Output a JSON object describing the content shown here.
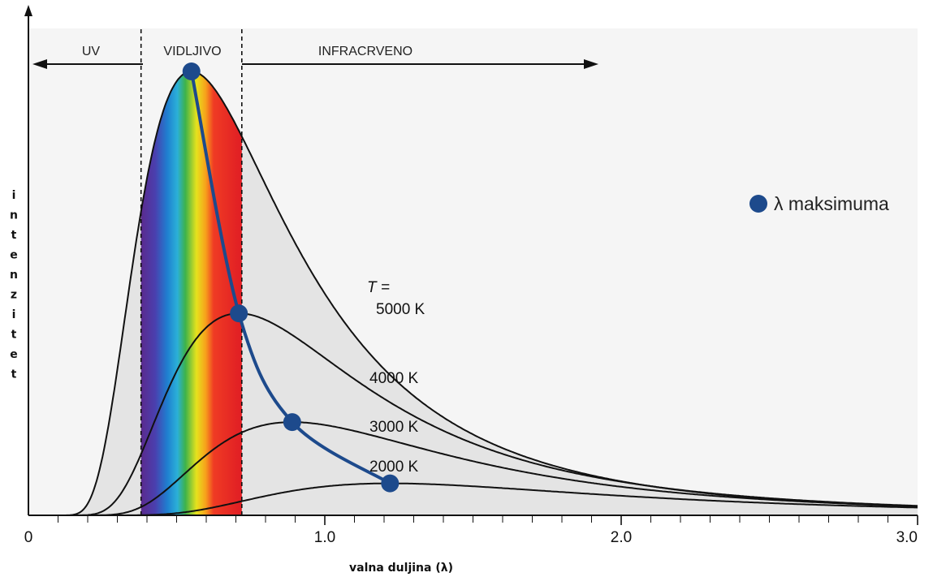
{
  "chart_data": {
    "type": "line",
    "xlabel": "valna duljina (λ)",
    "ylabel": "intenzitet",
    "xlim": [
      0,
      3.0
    ],
    "x_ticks": [
      {
        "value": 0,
        "label": "0"
      },
      {
        "value": 1.0,
        "label": "1.0"
      },
      {
        "value": 2.0,
        "label": "2.0"
      },
      {
        "value": 3.0,
        "label": "3.0"
      }
    ],
    "regions": [
      {
        "label": "UV",
        "direction": "left"
      },
      {
        "label": "VIDLJIVO",
        "range": [
          0.38,
          0.72
        ]
      },
      {
        "label": "INFRACRVENO",
        "direction": "right"
      }
    ],
    "series": [
      {
        "name": "5000 K",
        "label_prefix": "T =",
        "peak_x": 0.55,
        "peak_y": 1.0
      },
      {
        "name": "4000 K",
        "peak_x": 0.71,
        "peak_y": 0.455
      },
      {
        "name": "3000 K",
        "peak_x": 0.89,
        "peak_y": 0.21
      },
      {
        "name": "2000 K",
        "peak_x": 1.22,
        "peak_y": 0.072
      }
    ],
    "peak_markers": [
      {
        "x": 0.55,
        "y": 1.0
      },
      {
        "x": 0.71,
        "y": 0.455
      },
      {
        "x": 0.89,
        "y": 0.21
      },
      {
        "x": 1.22,
        "y": 0.072
      }
    ],
    "legend": {
      "label": "λ maksimuma",
      "position": "right",
      "color": "#1d4a8c"
    },
    "colors": {
      "fill": "#e4e4e4",
      "curve": "#111111",
      "peak_line": "#1d4a8c"
    }
  }
}
